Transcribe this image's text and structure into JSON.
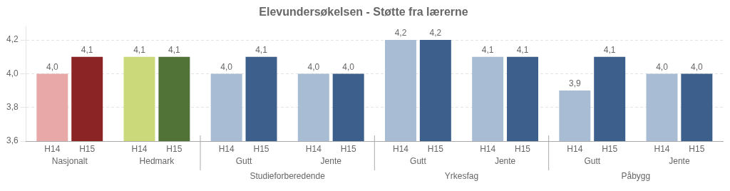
{
  "chart_data": {
    "type": "bar",
    "title": "Elevundersøkelsen - Støtte fra lærerne",
    "categories": [
      "Nasjonalt",
      "Hedmark",
      "Gutt",
      "Jente",
      "Gutt",
      "Jente",
      "Gutt",
      "Jente"
    ],
    "series": [
      {
        "name": "H14",
        "colors": [
          "#e8a8a8",
          "#ccd97a",
          "#a8bdd4",
          "#a8bdd4",
          "#a8bdd4",
          "#a8bdd4",
          "#a8bdd4",
          "#a8bdd4"
        ],
        "values": [
          4.0,
          4.1,
          4.0,
          4.0,
          4.2,
          4.1,
          3.9,
          4.0
        ],
        "value_labels": [
          "4,0",
          "4,1",
          "4,0",
          "4,0",
          "4,2",
          "4,1",
          "3,9",
          "4,0"
        ]
      },
      {
        "name": "H15",
        "colors": [
          "#8b2525",
          "#527338",
          "#3d5f8c",
          "#3d5f8c",
          "#3d5f8c",
          "#3d5f8c",
          "#3d5f8c",
          "#3d5f8c"
        ],
        "values": [
          4.1,
          4.1,
          4.1,
          4.0,
          4.2,
          4.1,
          4.1,
          4.0
        ],
        "value_labels": [
          "4,1",
          "4,1",
          "4,1",
          "4,0",
          "4,2",
          "4,1",
          "4,1",
          "4,0"
        ]
      }
    ],
    "ylim": [
      3.6,
      4.28
    ],
    "yticks": [
      {
        "value": 3.6,
        "label": "3,6"
      },
      {
        "value": 3.8,
        "label": "3,8"
      },
      {
        "value": 4.0,
        "label": "4,0"
      },
      {
        "value": 4.2,
        "label": "4,2"
      }
    ],
    "grid": true,
    "data_labels": true,
    "annotations": [
      {
        "text": "Studieforberedende",
        "span": [
          2,
          3
        ]
      },
      {
        "text": "Yrkesfag",
        "span": [
          4,
          5
        ]
      },
      {
        "text": "Påbygg",
        "span": [
          6,
          7
        ]
      }
    ]
  }
}
